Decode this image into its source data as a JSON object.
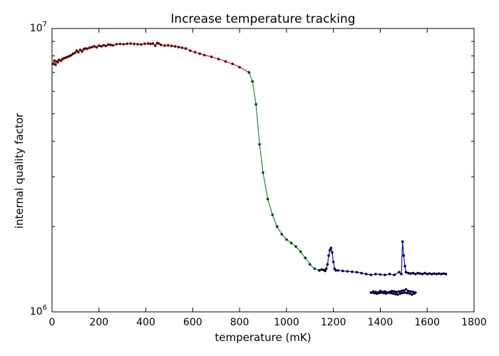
{
  "chart_data": {
    "type": "line",
    "title": "Increase temperature tracking",
    "xlabel": "temperature (mK)",
    "ylabel": "internal quality factor",
    "xlim": [
      0,
      1800
    ],
    "ylim": [
      1000000,
      10000000
    ],
    "yscale": "log",
    "grid": false,
    "x_ticks": [
      0,
      200,
      400,
      600,
      800,
      1000,
      1200,
      1400,
      1600,
      1800
    ],
    "x_tick_labels": [
      "0",
      "200",
      "400",
      "600",
      "800",
      "1000",
      "1200",
      "1400",
      "1600",
      "1800"
    ],
    "y_ticks": [
      1000000,
      10000000
    ],
    "y_tick_labels": [
      {
        "base": "10",
        "exp": "6"
      },
      {
        "base": "10",
        "exp": "7"
      }
    ],
    "series": [
      {
        "color": "#cc2222",
        "marker_color": "#5a0000",
        "x": [
          5,
          10,
          15,
          20,
          25,
          30,
          38,
          45,
          52,
          60,
          68,
          75,
          82,
          90,
          98,
          105,
          112,
          120,
          128,
          135,
          142,
          150,
          160,
          170,
          180,
          190,
          200,
          210,
          220,
          230,
          240,
          250,
          260,
          275,
          290,
          305,
          320,
          335,
          350,
          365,
          380,
          395,
          410,
          420,
          430,
          440,
          448,
          455,
          465,
          480,
          495,
          510,
          525,
          540,
          555,
          570,
          590,
          610,
          630,
          650,
          680,
          710,
          740,
          770,
          800,
          840
        ],
        "y": [
          7500000,
          7700000,
          7450000,
          7650000,
          7600000,
          7750000,
          7700000,
          7800000,
          7850000,
          7900000,
          7950000,
          8000000,
          8050000,
          8150000,
          8200000,
          8350000,
          8250000,
          8400000,
          8300000,
          8450000,
          8500000,
          8480000,
          8550000,
          8600000,
          8650000,
          8580000,
          8700000,
          8650000,
          8720000,
          8680000,
          8780000,
          8750000,
          8720000,
          8800000,
          8820000,
          8800000,
          8830000,
          8850000,
          8820000,
          8800000,
          8780000,
          8830000,
          8850000,
          8820000,
          8850000,
          8700000,
          8880000,
          8850000,
          8750000,
          8700000,
          8720000,
          8680000,
          8650000,
          8600000,
          8550000,
          8500000,
          8350000,
          8250000,
          8150000,
          8050000,
          7950000,
          7800000,
          7650000,
          7500000,
          7300000,
          7000000
        ]
      },
      {
        "color": "#1a8a3a",
        "marker_color": "#003a14",
        "x": [
          840,
          855,
          870,
          885,
          900,
          920,
          940,
          960,
          980,
          1000,
          1020,
          1040,
          1060,
          1080,
          1100,
          1120,
          1140
        ],
        "y": [
          7000000,
          6500000,
          5400000,
          3900000,
          3100000,
          2500000,
          2200000,
          2000000,
          1880000,
          1800000,
          1750000,
          1700000,
          1630000,
          1550000,
          1470000,
          1420000,
          1400000
        ]
      },
      {
        "color": "#1010dd",
        "marker_color": "#00003a",
        "x": [
          1140,
          1150,
          1160,
          1165,
          1170,
          1175,
          1180,
          1185,
          1190,
          1195,
          1200,
          1205,
          1210,
          1220,
          1240,
          1260,
          1280,
          1300,
          1320,
          1340,
          1360,
          1380,
          1400,
          1420,
          1440,
          1460,
          1480,
          1490,
          1495,
          1500,
          1505,
          1510,
          1520,
          1530,
          1540,
          1550,
          1560,
          1570,
          1580,
          1590,
          1600,
          1610,
          1620,
          1630,
          1640,
          1650,
          1660,
          1670,
          1680
        ],
        "y": [
          1400000,
          1410000,
          1405000,
          1395000,
          1420000,
          1470000,
          1580000,
          1650000,
          1680000,
          1620000,
          1500000,
          1420000,
          1400000,
          1400000,
          1395000,
          1390000,
          1385000,
          1380000,
          1370000,
          1360000,
          1350000,
          1360000,
          1355000,
          1350000,
          1360000,
          1350000,
          1380000,
          1360000,
          1770000,
          1580000,
          1450000,
          1380000,
          1370000,
          1365000,
          1370000,
          1360000,
          1370000,
          1365000,
          1360000,
          1370000,
          1360000,
          1365000,
          1360000,
          1365000,
          1360000,
          1365000,
          1360000,
          1365000,
          1360000
        ]
      },
      {
        "color": "#1010dd",
        "marker_color": "#00003a",
        "x": [
          1360,
          1370,
          1380,
          1390,
          1400,
          1410,
          1420,
          1430,
          1440,
          1450,
          1460,
          1470,
          1480,
          1490,
          1500,
          1510,
          1520,
          1530,
          1540,
          1550,
          1545,
          1535,
          1525,
          1515,
          1505,
          1495,
          1485,
          1475,
          1465,
          1455,
          1445,
          1435,
          1425,
          1415,
          1405,
          1395,
          1385,
          1375,
          1365
        ],
        "y": [
          1170000,
          1180000,
          1175000,
          1170000,
          1185000,
          1175000,
          1180000,
          1170000,
          1175000,
          1185000,
          1180000,
          1175000,
          1180000,
          1185000,
          1190000,
          1200000,
          1185000,
          1180000,
          1175000,
          1170000,
          1160000,
          1150000,
          1160000,
          1165000,
          1170000,
          1165000,
          1160000,
          1150000,
          1155000,
          1160000,
          1165000,
          1170000,
          1160000,
          1165000,
          1170000,
          1165000,
          1160000,
          1165000,
          1170000
        ]
      }
    ]
  }
}
